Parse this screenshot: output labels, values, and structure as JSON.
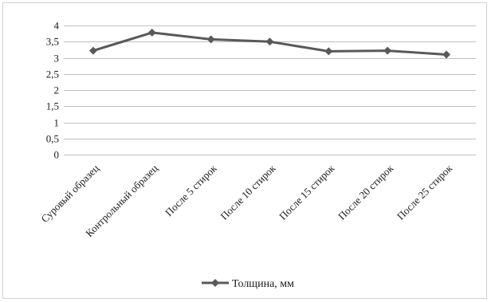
{
  "chart_data": {
    "type": "line",
    "categories": [
      "Суровый образец",
      "Контрольный образец",
      "После 5 стирок",
      "После 10 стирок",
      "После 15 стирок",
      "После 20 стирок",
      "После 25 стирок"
    ],
    "series": [
      {
        "name": "Толщина, мм",
        "values": [
          3.22,
          3.78,
          3.57,
          3.5,
          3.2,
          3.22,
          3.1
        ],
        "color": "#595959",
        "marker": "diamond"
      }
    ],
    "y_ticks": [
      "0",
      "0,5",
      "1",
      "1,5",
      "2",
      "2,5",
      "3",
      "3,5",
      "4"
    ],
    "ylim": [
      0,
      4
    ],
    "y_step": 0.5,
    "grid": true,
    "legend_position": "bottom"
  }
}
